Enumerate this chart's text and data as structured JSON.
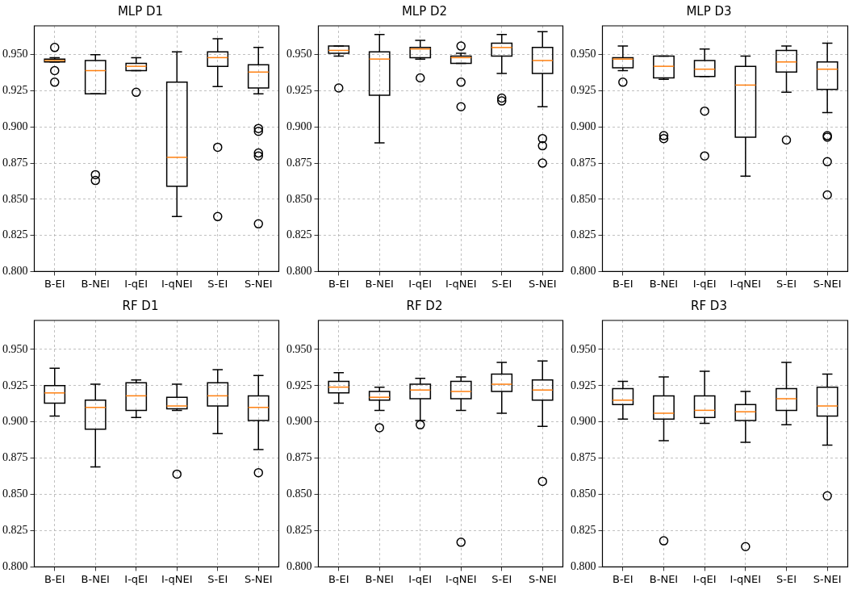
{
  "chart_data": [
    {
      "type": "box",
      "title": "MLP D1",
      "categories": [
        "B-EI",
        "B-NEI",
        "I-qEI",
        "I-qNEI",
        "S-EI",
        "S-NEI"
      ],
      "ylim": [
        0.8,
        0.97
      ],
      "yticks": [
        {
          "value": 0.8,
          "label": "0.800"
        },
        {
          "value": 0.825,
          "label": "0.825"
        },
        {
          "value": 0.85,
          "label": "0.850"
        },
        {
          "value": 0.875,
          "label": "0.875"
        },
        {
          "value": 0.9,
          "label": "0.900"
        },
        {
          "value": 0.925,
          "label": "0.925"
        },
        {
          "value": 0.95,
          "label": "0.950"
        }
      ],
      "grid": true,
      "boxes": [
        {
          "low": 0.945,
          "q1": 0.945,
          "median": 0.946,
          "q3": 0.947,
          "high": 0.948,
          "outliers": [
            0.955,
            0.939,
            0.931
          ]
        },
        {
          "low": 0.923,
          "q1": 0.923,
          "median": 0.939,
          "q3": 0.946,
          "high": 0.95,
          "outliers": [
            0.867,
            0.863
          ]
        },
        {
          "low": 0.939,
          "q1": 0.939,
          "median": 0.942,
          "q3": 0.944,
          "high": 0.948,
          "outliers": [
            0.924
          ]
        },
        {
          "low": 0.838,
          "q1": 0.859,
          "median": 0.879,
          "q3": 0.931,
          "high": 0.952
        },
        {
          "low": 0.928,
          "q1": 0.942,
          "median": 0.948,
          "q3": 0.952,
          "high": 0.961,
          "outliers": [
            0.886,
            0.838
          ]
        },
        {
          "low": 0.923,
          "q1": 0.927,
          "median": 0.938,
          "q3": 0.943,
          "high": 0.955,
          "outliers": [
            0.899,
            0.897,
            0.882,
            0.88,
            0.833
          ]
        }
      ]
    },
    {
      "type": "box",
      "title": "MLP D2",
      "categories": [
        "B-EI",
        "B-NEI",
        "I-qEI",
        "I-qNEI",
        "S-EI",
        "S-NEI"
      ],
      "ylim": [
        0.8,
        0.97
      ],
      "yticks": [
        {
          "value": 0.8,
          "label": "0.800"
        },
        {
          "value": 0.825,
          "label": "0.825"
        },
        {
          "value": 0.85,
          "label": "0.850"
        },
        {
          "value": 0.875,
          "label": "0.875"
        },
        {
          "value": 0.9,
          "label": "0.900"
        },
        {
          "value": 0.925,
          "label": "0.925"
        },
        {
          "value": 0.95,
          "label": "0.950"
        }
      ],
      "grid": true,
      "boxes": [
        {
          "low": 0.949,
          "q1": 0.951,
          "median": 0.953,
          "q3": 0.956,
          "high": 0.956,
          "outliers": [
            0.927
          ]
        },
        {
          "low": 0.889,
          "q1": 0.922,
          "median": 0.947,
          "q3": 0.952,
          "high": 0.964
        },
        {
          "low": 0.947,
          "q1": 0.948,
          "median": 0.954,
          "q3": 0.955,
          "high": 0.96,
          "outliers": [
            0.934
          ]
        },
        {
          "low": 0.944,
          "q1": 0.944,
          "median": 0.948,
          "q3": 0.949,
          "high": 0.951,
          "outliers": [
            0.956,
            0.931,
            0.914
          ]
        },
        {
          "low": 0.937,
          "q1": 0.949,
          "median": 0.955,
          "q3": 0.958,
          "high": 0.964,
          "outliers": [
            0.92,
            0.918
          ]
        },
        {
          "low": 0.914,
          "q1": 0.937,
          "median": 0.946,
          "q3": 0.955,
          "high": 0.966,
          "outliers": [
            0.892,
            0.887,
            0.875
          ]
        }
      ]
    },
    {
      "type": "box",
      "title": "MLP D3",
      "categories": [
        "B-EI",
        "B-NEI",
        "I-qEI",
        "I-qNEI",
        "S-EI",
        "S-NEI"
      ],
      "ylim": [
        0.8,
        0.97
      ],
      "yticks": [
        {
          "value": 0.8,
          "label": "0.800"
        },
        {
          "value": 0.825,
          "label": "0.825"
        },
        {
          "value": 0.85,
          "label": "0.850"
        },
        {
          "value": 0.875,
          "label": "0.875"
        },
        {
          "value": 0.9,
          "label": "0.900"
        },
        {
          "value": 0.925,
          "label": "0.925"
        },
        {
          "value": 0.95,
          "label": "0.950"
        }
      ],
      "grid": true,
      "boxes": [
        {
          "low": 0.939,
          "q1": 0.941,
          "median": 0.947,
          "q3": 0.948,
          "high": 0.956,
          "outliers": [
            0.931
          ]
        },
        {
          "low": 0.933,
          "q1": 0.934,
          "median": 0.942,
          "q3": 0.949,
          "high": 0.949,
          "outliers": [
            0.894,
            0.892
          ]
        },
        {
          "low": 0.935,
          "q1": 0.935,
          "median": 0.94,
          "q3": 0.946,
          "high": 0.954,
          "outliers": [
            0.911,
            0.88
          ]
        },
        {
          "low": 0.866,
          "q1": 0.893,
          "median": 0.929,
          "q3": 0.942,
          "high": 0.949
        },
        {
          "low": 0.924,
          "q1": 0.938,
          "median": 0.945,
          "q3": 0.953,
          "high": 0.956,
          "outliers": [
            0.891
          ]
        },
        {
          "low": 0.91,
          "q1": 0.926,
          "median": 0.94,
          "q3": 0.945,
          "high": 0.958,
          "outliers": [
            0.894,
            0.893,
            0.876,
            0.853
          ]
        }
      ]
    },
    {
      "type": "box",
      "title": "RF D1",
      "categories": [
        "B-EI",
        "B-NEI",
        "I-qEI",
        "I-qNEI",
        "S-EI",
        "S-NEI"
      ],
      "ylim": [
        0.8,
        0.97
      ],
      "yticks": [
        {
          "value": 0.8,
          "label": "0.800"
        },
        {
          "value": 0.825,
          "label": "0.825"
        },
        {
          "value": 0.85,
          "label": "0.850"
        },
        {
          "value": 0.875,
          "label": "0.875"
        },
        {
          "value": 0.9,
          "label": "0.900"
        },
        {
          "value": 0.925,
          "label": "0.925"
        },
        {
          "value": 0.95,
          "label": "0.950"
        }
      ],
      "grid": true,
      "boxes": [
        {
          "low": 0.904,
          "q1": 0.913,
          "median": 0.92,
          "q3": 0.925,
          "high": 0.937
        },
        {
          "low": 0.869,
          "q1": 0.895,
          "median": 0.91,
          "q3": 0.915,
          "high": 0.926
        },
        {
          "low": 0.903,
          "q1": 0.908,
          "median": 0.918,
          "q3": 0.927,
          "high": 0.929
        },
        {
          "low": 0.908,
          "q1": 0.909,
          "median": 0.911,
          "q3": 0.917,
          "high": 0.926,
          "outliers": [
            0.864
          ]
        },
        {
          "low": 0.892,
          "q1": 0.911,
          "median": 0.918,
          "q3": 0.927,
          "high": 0.936
        },
        {
          "low": 0.881,
          "q1": 0.901,
          "median": 0.91,
          "q3": 0.918,
          "high": 0.932,
          "outliers": [
            0.865
          ]
        }
      ]
    },
    {
      "type": "box",
      "title": "RF D2",
      "categories": [
        "B-EI",
        "B-NEI",
        "I-qEI",
        "I-qNEI",
        "S-EI",
        "S-NEI"
      ],
      "ylim": [
        0.8,
        0.97
      ],
      "yticks": [
        {
          "value": 0.8,
          "label": "0.800"
        },
        {
          "value": 0.825,
          "label": "0.825"
        },
        {
          "value": 0.85,
          "label": "0.850"
        },
        {
          "value": 0.875,
          "label": "0.875"
        },
        {
          "value": 0.9,
          "label": "0.900"
        },
        {
          "value": 0.925,
          "label": "0.925"
        },
        {
          "value": 0.95,
          "label": "0.950"
        }
      ],
      "grid": true,
      "boxes": [
        {
          "low": 0.913,
          "q1": 0.92,
          "median": 0.924,
          "q3": 0.928,
          "high": 0.934
        },
        {
          "low": 0.908,
          "q1": 0.915,
          "median": 0.917,
          "q3": 0.921,
          "high": 0.924,
          "outliers": [
            0.896
          ]
        },
        {
          "low": 0.901,
          "q1": 0.916,
          "median": 0.922,
          "q3": 0.926,
          "high": 0.93,
          "outliers": [
            0.898
          ]
        },
        {
          "low": 0.908,
          "q1": 0.916,
          "median": 0.921,
          "q3": 0.928,
          "high": 0.931,
          "outliers": [
            0.817
          ]
        },
        {
          "low": 0.906,
          "q1": 0.921,
          "median": 0.926,
          "q3": 0.933,
          "high": 0.941
        },
        {
          "low": 0.897,
          "q1": 0.915,
          "median": 0.922,
          "q3": 0.929,
          "high": 0.942,
          "outliers": [
            0.859
          ]
        }
      ]
    },
    {
      "type": "box",
      "title": "RF D3",
      "categories": [
        "B-EI",
        "B-NEI",
        "I-qEI",
        "I-qNEI",
        "S-EI",
        "S-NEI"
      ],
      "ylim": [
        0.8,
        0.97
      ],
      "yticks": [
        {
          "value": 0.8,
          "label": "0.800"
        },
        {
          "value": 0.825,
          "label": "0.825"
        },
        {
          "value": 0.85,
          "label": "0.850"
        },
        {
          "value": 0.875,
          "label": "0.875"
        },
        {
          "value": 0.9,
          "label": "0.900"
        },
        {
          "value": 0.925,
          "label": "0.925"
        },
        {
          "value": 0.95,
          "label": "0.950"
        }
      ],
      "grid": true,
      "boxes": [
        {
          "low": 0.902,
          "q1": 0.912,
          "median": 0.915,
          "q3": 0.923,
          "high": 0.928
        },
        {
          "low": 0.887,
          "q1": 0.902,
          "median": 0.906,
          "q3": 0.918,
          "high": 0.931,
          "outliers": [
            0.818
          ]
        },
        {
          "low": 0.899,
          "q1": 0.903,
          "median": 0.908,
          "q3": 0.918,
          "high": 0.935
        },
        {
          "low": 0.886,
          "q1": 0.901,
          "median": 0.907,
          "q3": 0.912,
          "high": 0.921,
          "outliers": [
            0.814
          ]
        },
        {
          "low": 0.898,
          "q1": 0.908,
          "median": 0.916,
          "q3": 0.923,
          "high": 0.941
        },
        {
          "low": 0.884,
          "q1": 0.904,
          "median": 0.911,
          "q3": 0.924,
          "high": 0.933,
          "outliers": [
            0.849
          ]
        }
      ]
    }
  ]
}
